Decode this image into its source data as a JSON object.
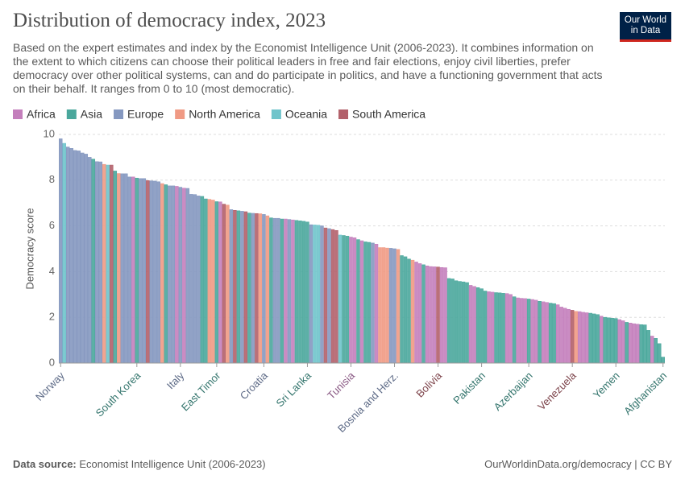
{
  "logo": "Our World in Data",
  "chart_data": {
    "type": "bar",
    "title": "Distribution of democracy index, 2023",
    "subtitle": "Based on the expert estimates and index by the Economist Intelligence Unit (2006-2023). It combines information on the extent to which citizens can choose their political leaders in free and fair elections, enjoy civil liberties, prefer democracy over other political systems, can and do participate in politics, and have a functioning government that acts on their behalf. It ranges from 0 to 10 (most democratic).",
    "y_label": "Democracy score",
    "source_label": "Data source:",
    "source": "Economist Intelligence Unit (2006-2023)",
    "credit": "OurWorldinData.org/democracy | CC BY",
    "legend": [
      {
        "name": "Africa",
        "color": "#c47fbc"
      },
      {
        "name": "Asia",
        "color": "#4aa79c"
      },
      {
        "name": "Europe",
        "color": "#8598c0"
      },
      {
        "name": "North America",
        "color": "#f09a84"
      },
      {
        "name": "Oceania",
        "color": "#6fc4cb"
      },
      {
        "name": "South America",
        "color": "#b2606a"
      }
    ],
    "categories": [
      "Norway",
      null,
      null,
      null,
      null,
      null,
      null,
      null,
      null,
      null,
      null,
      null,
      null,
      null,
      null,
      null,
      null,
      null,
      null,
      null,
      null,
      "South Korea",
      null,
      null,
      null,
      null,
      null,
      null,
      null,
      null,
      null,
      null,
      null,
      "Italy",
      null,
      null,
      null,
      null,
      null,
      null,
      null,
      null,
      null,
      "East Timor",
      null,
      null,
      null,
      null,
      null,
      null,
      null,
      null,
      null,
      null,
      null,
      null,
      "Croatia",
      null,
      null,
      null,
      null,
      null,
      null,
      null,
      null,
      null,
      null,
      null,
      "Sri Lanka",
      null,
      null,
      null,
      null,
      null,
      null,
      null,
      null,
      null,
      null,
      null,
      "Tunisia",
      null,
      null,
      null,
      null,
      null,
      null,
      null,
      null,
      null,
      null,
      null,
      "Bosnia and Herz.",
      null,
      null,
      null,
      null,
      null,
      null,
      null,
      null,
      null,
      null,
      null,
      "Bolivia",
      null,
      null,
      null,
      null,
      null,
      null,
      null,
      null,
      null,
      null,
      null,
      "Pakistan",
      null,
      null,
      null,
      null,
      null,
      null,
      null,
      null,
      null,
      null,
      null,
      null,
      "Azerbaijan",
      null,
      null,
      null,
      null,
      null,
      null,
      null,
      null,
      null,
      null,
      null,
      "Venezuela",
      null,
      null,
      null,
      null,
      null,
      null,
      null,
      null,
      null,
      null,
      null,
      "Yemen",
      null,
      null,
      null,
      null,
      null,
      null,
      null,
      null,
      null,
      null,
      null,
      null,
      "Afghanistan"
    ],
    "values": [
      9.81,
      9.61,
      9.45,
      9.39,
      9.3,
      9.28,
      9.19,
      9.14,
      9.0,
      8.92,
      8.81,
      8.8,
      8.69,
      8.66,
      8.66,
      8.4,
      8.29,
      8.28,
      8.28,
      8.14,
      8.14,
      8.09,
      8.07,
      8.07,
      7.98,
      7.97,
      7.96,
      7.93,
      7.85,
      7.8,
      7.75,
      7.75,
      7.73,
      7.69,
      7.65,
      7.64,
      7.38,
      7.37,
      7.31,
      7.29,
      7.18,
      7.16,
      7.13,
      7.06,
      7.05,
      6.95,
      6.91,
      6.71,
      6.68,
      6.66,
      6.64,
      6.62,
      6.56,
      6.55,
      6.54,
      6.53,
      6.5,
      6.44,
      6.35,
      6.33,
      6.33,
      6.3,
      6.3,
      6.28,
      6.26,
      6.24,
      6.22,
      6.2,
      6.17,
      6.05,
      6.04,
      6.03,
      6.0,
      5.91,
      5.88,
      5.84,
      5.8,
      5.6,
      5.58,
      5.55,
      5.51,
      5.48,
      5.4,
      5.35,
      5.3,
      5.28,
      5.25,
      5.2,
      5.05,
      5.05,
      5.03,
      5.02,
      5.0,
      4.97,
      4.7,
      4.65,
      4.55,
      4.5,
      4.42,
      4.35,
      4.3,
      4.25,
      4.22,
      4.21,
      4.2,
      4.18,
      4.17,
      3.7,
      3.68,
      3.6,
      3.57,
      3.55,
      3.52,
      3.4,
      3.35,
      3.3,
      3.25,
      3.15,
      3.12,
      3.1,
      3.08,
      3.07,
      3.05,
      3.04,
      3.0,
      2.9,
      2.85,
      2.83,
      2.82,
      2.8,
      2.78,
      2.75,
      2.7,
      2.68,
      2.65,
      2.62,
      2.6,
      2.55,
      2.45,
      2.4,
      2.35,
      2.31,
      2.26,
      2.25,
      2.22,
      2.2,
      2.18,
      2.15,
      2.12,
      2.05,
      2.0,
      1.98,
      1.96,
      1.95,
      1.9,
      1.85,
      1.78,
      1.75,
      1.72,
      1.7,
      1.68,
      1.67,
      1.43,
      1.18,
      1.08,
      0.85,
      0.26
    ],
    "colors": [
      "#8598c0",
      "#6fc4cb",
      "#8598c0",
      "#8598c0",
      "#8598c0",
      "#8598c0",
      "#8598c0",
      "#8598c0",
      "#8598c0",
      "#4aa79c",
      "#8598c0",
      "#8598c0",
      "#f09a84",
      "#6fc4cb",
      "#b2606a",
      "#4aa79c",
      "#f09a84",
      "#8598c0",
      "#8598c0",
      "#8598c0",
      "#c47fbc",
      "#4aa79c",
      "#8598c0",
      "#8598c0",
      "#b2606a",
      "#8598c0",
      "#8598c0",
      "#8598c0",
      "#f09a84",
      "#4aa79c",
      "#8598c0",
      "#8598c0",
      "#c47fbc",
      "#8598c0",
      "#c47fbc",
      "#8598c0",
      "#8598c0",
      "#8598c0",
      "#8598c0",
      "#4aa79c",
      "#4aa79c",
      "#f09a84",
      "#f09a84",
      "#4aa79c",
      "#c47fbc",
      "#b2606a",
      "#f09a84",
      "#8598c0",
      "#b2606a",
      "#4aa79c",
      "#8598c0",
      "#b2606a",
      "#4aa79c",
      "#8598c0",
      "#b2606a",
      "#f09a84",
      "#8598c0",
      "#f09a84",
      "#4aa79c",
      "#8598c0",
      "#8598c0",
      "#4aa79c",
      "#c47fbc",
      "#8598c0",
      "#c47fbc",
      "#4aa79c",
      "#4aa79c",
      "#4aa79c",
      "#4aa79c",
      "#8598c0",
      "#6fc4cb",
      "#6fc4cb",
      "#8598c0",
      "#b2606a",
      "#8598c0",
      "#b2606a",
      "#b2606a",
      "#6fc4cb",
      "#4aa79c",
      "#4aa79c",
      "#c47fbc",
      "#c47fbc",
      "#4aa79c",
      "#c47fbc",
      "#4aa79c",
      "#4aa79c",
      "#8598c0",
      "#c47fbc",
      "#f09a84",
      "#f09a84",
      "#f09a84",
      "#8598c0",
      "#8598c0",
      "#f09a84",
      "#4aa79c",
      "#4aa79c",
      "#4aa79c",
      "#f09a84",
      "#c47fbc",
      "#c47fbc",
      "#4aa79c",
      "#c47fbc",
      "#c47fbc",
      "#c47fbc",
      "#b2606a",
      "#c47fbc",
      "#c47fbc",
      "#4aa79c",
      "#4aa79c",
      "#4aa79c",
      "#4aa79c",
      "#4aa79c",
      "#4aa79c",
      "#c47fbc",
      "#c47fbc",
      "#4aa79c",
      "#4aa79c",
      "#4aa79c",
      "#c47fbc",
      "#c47fbc",
      "#4aa79c",
      "#4aa79c",
      "#4aa79c",
      "#c47fbc",
      "#c47fbc",
      "#4aa79c",
      "#c47fbc",
      "#c47fbc",
      "#c47fbc",
      "#4aa79c",
      "#c47fbc",
      "#c47fbc",
      "#4aa79c",
      "#c47fbc",
      "#c47fbc",
      "#4aa79c",
      "#4aa79c",
      "#c47fbc",
      "#c47fbc",
      "#c47fbc",
      "#c47fbc",
      "#b2606a",
      "#f09a84",
      "#c47fbc",
      "#c47fbc",
      "#c47fbc",
      "#4aa79c",
      "#4aa79c",
      "#4aa79c",
      "#c47fbc",
      "#4aa79c",
      "#4aa79c",
      "#4aa79c",
      "#4aa79c",
      "#c47fbc",
      "#c47fbc",
      "#4aa79c",
      "#c47fbc",
      "#c47fbc",
      "#c47fbc",
      "#4aa79c",
      "#4aa79c",
      "#4aa79c",
      "#c47fbc",
      "#4aa79c",
      "#4aa79c",
      "#4aa79c"
    ],
    "ylim": [
      0,
      10
    ],
    "yticks": [
      0,
      2,
      4,
      6,
      8,
      10
    ],
    "grid": true
  }
}
